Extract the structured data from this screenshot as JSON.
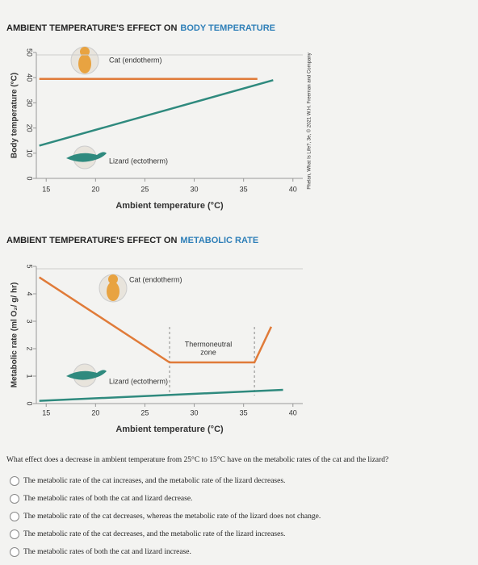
{
  "chart_data": [
    {
      "type": "line",
      "title_parts": [
        "AMBIENT TEMPERATURE'S EFFECT ON",
        "BODY TEMPERATURE"
      ],
      "xlabel": "Ambient temperature (°C)",
      "ylabel": "Body temperature (°C)",
      "xlim": [
        14,
        41
      ],
      "xticks": [
        15,
        20,
        25,
        30,
        35,
        40
      ],
      "ylim": [
        0,
        50
      ],
      "yticks": [
        0,
        10,
        20,
        30,
        40,
        50
      ],
      "series": [
        {
          "name": "Cat (endotherm)",
          "color": "#e07b39",
          "x": [
            14.3,
            36.4
          ],
          "values": [
            39.5,
            39.5
          ]
        },
        {
          "name": "Lizard (ectotherm)",
          "color": "#2f8a7e",
          "x": [
            14.3,
            38
          ],
          "values": [
            13,
            39
          ]
        }
      ]
    },
    {
      "type": "line",
      "title_parts": [
        "AMBIENT TEMPERATURE'S EFFECT ON",
        "METABOLIC RATE"
      ],
      "xlabel": "Ambient temperature (°C)",
      "ylabel": "Metabolic rate (ml O₂/ g/ hr)",
      "xlim": [
        14,
        41
      ],
      "xticks": [
        15,
        20,
        25,
        30,
        35,
        40
      ],
      "ylim": [
        0,
        5
      ],
      "yticks": [
        0,
        1,
        2,
        3,
        4,
        5
      ],
      "series": [
        {
          "name": "Cat (endotherm)",
          "color": "#e07b39",
          "x": [
            14.3,
            27.5,
            36.1,
            37.8
          ],
          "values": [
            4.6,
            1.5,
            1.5,
            2.8
          ]
        },
        {
          "name": "Lizard (ectotherm)",
          "color": "#2f8a7e",
          "x": [
            14.3,
            39
          ],
          "values": [
            0.1,
            0.5
          ]
        }
      ],
      "zone": [
        27.5,
        36.1
      ],
      "annotations": [
        {
          "text": [
            "Thermoneutral",
            "zone"
          ]
        }
      ]
    }
  ],
  "copyright": "Phelan, What Is Life?, 3e, © 2021 W.H. Freeman and Company",
  "question": {
    "text": "What effect does a decrease in ambient temperature from 25°C to 15°C have on the metabolic rates of the cat and the lizard?",
    "options": [
      "The metabolic rate of the cat increases, and the metabolic rate of the lizard decreases.",
      "The metabolic rates of both the cat and lizard decrease.",
      "The metabolic rate of the cat decreases, whereas the metabolic rate of the lizard does not change.",
      "The metabolic rate of the cat decreases, and the metabolic rate of the lizard increases.",
      "The metabolic rates of both the cat and lizard increase."
    ]
  }
}
